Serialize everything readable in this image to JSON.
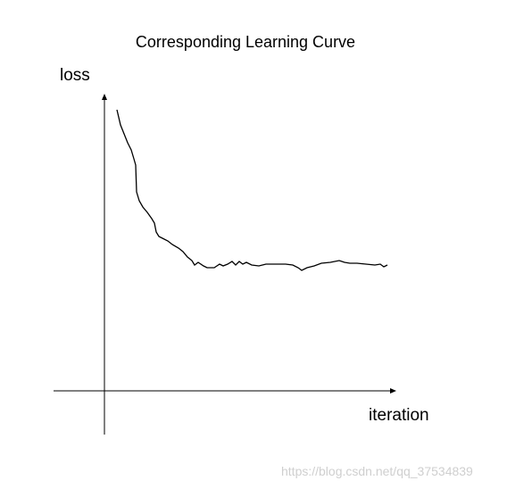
{
  "header": {
    "title": "Corresponding Learning Curve"
  },
  "axes": {
    "y_label": "loss",
    "x_label": "iteration"
  },
  "watermark": "https://blog.csdn.net/qq_37534839"
}
